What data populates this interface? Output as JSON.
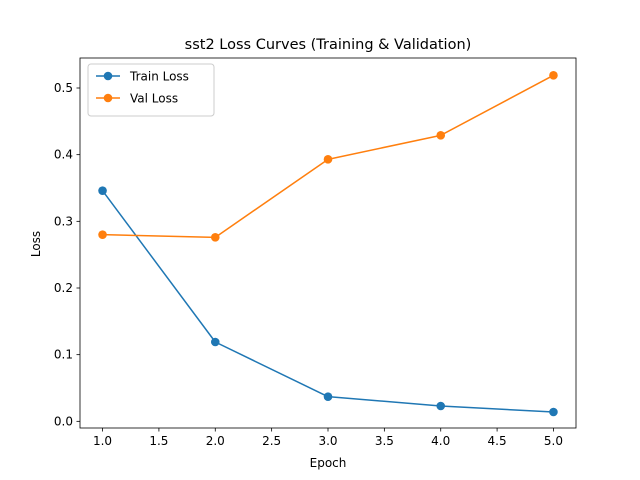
{
  "chart_data": {
    "type": "line",
    "title": "sst2 Loss Curves (Training & Validation)",
    "xlabel": "Epoch",
    "ylabel": "Loss",
    "x": [
      1,
      2,
      3,
      4,
      5
    ],
    "xlim": [
      0.8,
      5.2
    ],
    "ylim": [
      -0.01,
      0.545
    ],
    "xticks": [
      1.0,
      1.5,
      2.0,
      2.5,
      3.0,
      3.5,
      4.0,
      4.5,
      5.0
    ],
    "xtick_labels": [
      "1.0",
      "1.5",
      "2.0",
      "2.5",
      "3.0",
      "3.5",
      "4.0",
      "4.5",
      "5.0"
    ],
    "yticks": [
      0.0,
      0.1,
      0.2,
      0.3,
      0.4,
      0.5
    ],
    "ytick_labels": [
      "0.0",
      "0.1",
      "0.2",
      "0.3",
      "0.4",
      "0.5"
    ],
    "grid": false,
    "legend_position": "upper-left",
    "series": [
      {
        "name": "Train Loss",
        "color": "#1f77b4",
        "values": [
          0.346,
          0.119,
          0.037,
          0.023,
          0.014
        ]
      },
      {
        "name": "Val Loss",
        "color": "#ff7f0e",
        "values": [
          0.28,
          0.276,
          0.393,
          0.429,
          0.519
        ]
      }
    ]
  }
}
